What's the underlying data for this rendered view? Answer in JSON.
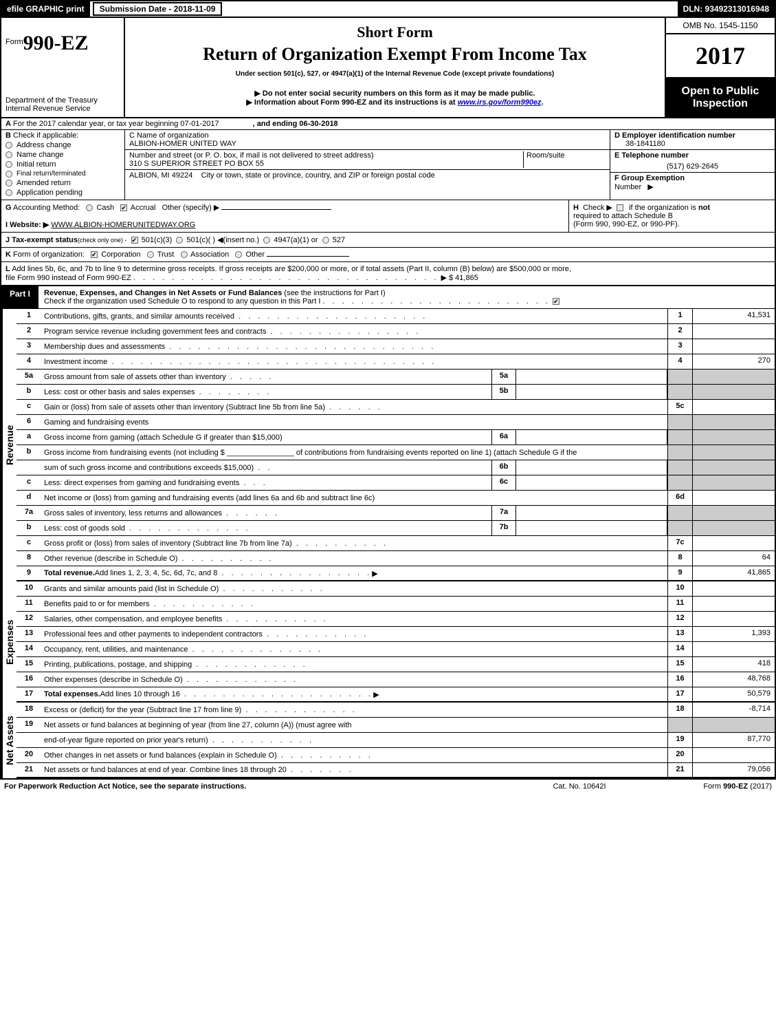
{
  "topbar": {
    "efile": "efile GRAPHIC print",
    "submission": "Submission Date - 2018-11-09",
    "dln": "DLN: 93492313016948"
  },
  "header": {
    "form_prefix": "Form",
    "form_no": "990-EZ",
    "dept1": "Department of the Treasury",
    "dept2": "Internal Revenue Service",
    "title1": "Short Form",
    "title2": "Return of Organization Exempt From Income Tax",
    "sub1": "Under section 501(c), 527, or 4947(a)(1) of the Internal Revenue Code (except private foundations)",
    "sub2": "▶ Do not enter social security numbers on this form as it may be made public.",
    "sub3_pre": "▶ Information about Form 990-EZ and its instructions is at ",
    "sub3_link": "www.irs.gov/form990ez",
    "sub3_post": ".",
    "omb": "OMB No. 1545-1150",
    "year": "2017",
    "open1": "Open to Public",
    "open2": "Inspection"
  },
  "rowA": {
    "lead": "A",
    "txt1": "For the 2017 calendar year, or tax year beginning 07-01-2017",
    "txt2": ", and ending 06-30-2018"
  },
  "B": {
    "lead": "B",
    "title": "Check if applicable:",
    "items": [
      "Address change",
      "Name change",
      "Initial return",
      "Final return/terminated",
      "Amended return",
      "Application pending"
    ]
  },
  "C": {
    "lbl_name": "C Name of organization",
    "name": "ALBION-HOMER UNITED WAY",
    "lbl_addr": "Number and street (or P. O. box, if mail is not delivered to street address)",
    "room_lbl": "Room/suite",
    "addr": "310 S SUPERIOR STREET PO BOX 55",
    "lbl_city": "City or town, state or province, country, and ZIP or foreign postal code",
    "city": "ALBION, MI  49224"
  },
  "D": {
    "lbl": "D Employer identification number",
    "val": "38-1841180"
  },
  "E": {
    "lbl": "E Telephone number",
    "val": "(517) 629-2645"
  },
  "F": {
    "lbl": "F Group Exemption",
    "lbl2": "Number",
    "arrow": "▶"
  },
  "G": {
    "lead": "G",
    "txt": "Accounting Method:",
    "opts": [
      "Cash",
      "Accrual",
      "Other (specify) ▶"
    ]
  },
  "H": {
    "lead": "H",
    "txt1": "Check ▶",
    "txt2": "if the organization is",
    "not": "not",
    "txt3": "required to attach Schedule B",
    "txt4": "(Form 990, 990-EZ, or 990-PF)."
  },
  "I": {
    "lead": "I Website: ▶",
    "url": "WWW.ALBION-HOMERUNITEDWAY.ORG"
  },
  "J": {
    "lead": "J Tax-exempt status",
    "note": "(check only one) -",
    "opts": [
      "501(c)(3)",
      "501(c)(  ) ◀(insert no.)",
      "4947(a)(1) or",
      "527"
    ]
  },
  "K": {
    "lead": "K",
    "txt": "Form of organization:",
    "opts": [
      "Corporation",
      "Trust",
      "Association",
      "Other"
    ]
  },
  "L": {
    "lead": "L",
    "txt1": "Add lines 5b, 6c, and 7b to line 9 to determine gross receipts. If gross receipts are $200,000 or more, or if total assets (Part II, column (B) below) are $500,000 or more,",
    "txt2": "file Form 990 instead of Form 990-EZ",
    "dots": ". . . . . . . . . . . . . . . . . . . . . . . . . . . . . . . .",
    "arrow": "▶",
    "amount": "$ 41,865"
  },
  "part1": {
    "label": "Part I",
    "title": "Revenue, Expenses, and Changes in Net Assets or Fund Balances",
    "see": "(see the instructions for Part I)",
    "check_line": "Check if the organization used Schedule O to respond to any question in this Part I",
    "check_dots": ". . . . . . . . . . . . . . . . . . . . . . . .",
    "sections": {
      "revenue": "Revenue",
      "expenses": "Expenses",
      "netassets": "Net Assets"
    }
  },
  "lines": [
    {
      "n": "1",
      "txt": "Contributions, gifts, grants, and similar amounts received",
      "dots": ". . . . . . . . . . . . . . . . . . . .",
      "rn": "1",
      "rv": "41,531"
    },
    {
      "n": "2",
      "txt": "Program service revenue including government fees and contracts",
      "dots": ". . . . . . . . . . . . . . . .",
      "rn": "2",
      "rv": ""
    },
    {
      "n": "3",
      "txt": "Membership dues and assessments",
      "dots": ". . . . . . . . . . . . . . . . . . . . . . . . . . . .",
      "rn": "3",
      "rv": ""
    },
    {
      "n": "4",
      "txt": "Investment income",
      "dots": ". . . . . . . . . . . . . . . . . . . . . . . . . . . . . . . . . .",
      "rn": "4",
      "rv": "270"
    },
    {
      "n": "5a",
      "txt": "Gross amount from sale of assets other than inventory",
      "dots": ". . . . .",
      "mid": "5a",
      "rv_shade": true
    },
    {
      "n": "b",
      "txt": "Less: cost or other basis and sales expenses",
      "dots": ". . . . . . . .",
      "mid": "5b",
      "rv_shade": true
    },
    {
      "n": "c",
      "txt": "Gain or (loss) from sale of assets other than inventory (Subtract line 5b from line 5a)",
      "dots": ". . . . . .",
      "rn": "5c",
      "rv": ""
    },
    {
      "n": "6",
      "txt": "Gaming and fundraising events",
      "rv_shade": true,
      "no_r": true
    },
    {
      "n": "a",
      "txt": "Gross income from gaming (attach Schedule G if greater than $15,000)",
      "mid": "6a",
      "rv_shade": true
    },
    {
      "n": "b",
      "txt": "Gross income from fundraising events (not including $ ________________ of contributions from fundraising events reported on line 1) (attach Schedule G if the",
      "wrap": true,
      "rv_shade": true,
      "no_r": true
    },
    {
      "n": "",
      "txt": "sum of such gross income and contributions exceeds $15,000)",
      "dots": ". .",
      "mid": "6b",
      "rv_shade": true
    },
    {
      "n": "c",
      "txt": "Less: direct expenses from gaming and fundraising events",
      "dots": ". . .",
      "mid": "6c",
      "rv_shade": true
    },
    {
      "n": "d",
      "txt": "Net income or (loss) from gaming and fundraising events (add lines 6a and 6b and subtract line 6c)",
      "rn": "6d",
      "rv": ""
    },
    {
      "n": "7a",
      "txt": "Gross sales of inventory, less returns and allowances",
      "dots": ". . . . . .",
      "mid": "7a",
      "rv_shade": true
    },
    {
      "n": "b",
      "txt": "Less: cost of goods sold",
      "dots": ". . . . . . . . . . . . .",
      "mid": "7b",
      "rv_shade": true
    },
    {
      "n": "c",
      "txt": "Gross profit or (loss) from sales of inventory (Subtract line 7b from line 7a)",
      "dots": ". . . . . . . . . .",
      "rn": "7c",
      "rv": ""
    },
    {
      "n": "8",
      "txt": "Other revenue (describe in Schedule O)",
      "dots": ". . . . . . . . . .",
      "rn": "8",
      "rv": "64"
    },
    {
      "n": "9",
      "txt_bold": "Total revenue.",
      "txt": " Add lines 1, 2, 3, 4, 5c, 6d, 7c, and 8",
      "dots": ". . . . . . . . . . . . . . . .",
      "arrow": "▶",
      "rn": "9",
      "rv": "41,865",
      "thick": true
    }
  ],
  "exp_lines": [
    {
      "n": "10",
      "txt": "Grants and similar amounts paid (list in Schedule O)",
      "dots": ". . . . . . . . . . .",
      "rn": "10",
      "rv": ""
    },
    {
      "n": "11",
      "txt": "Benefits paid to or for members",
      "dots": ". . . . . . . . . . .",
      "rn": "11",
      "rv": ""
    },
    {
      "n": "12",
      "txt": "Salaries, other compensation, and employee benefits",
      "dots": ". . . . . . . . . . .",
      "rn": "12",
      "rv": ""
    },
    {
      "n": "13",
      "txt": "Professional fees and other payments to independent contractors",
      "dots": ". . . . . . . . . . .",
      "rn": "13",
      "rv": "1,393"
    },
    {
      "n": "14",
      "txt": "Occupancy, rent, utilities, and maintenance",
      "dots": ". . . . . . . . . . . . . .",
      "rn": "14",
      "rv": ""
    },
    {
      "n": "15",
      "txt": "Printing, publications, postage, and shipping",
      "dots": ". . . . . . . . . . . .",
      "rn": "15",
      "rv": "418"
    },
    {
      "n": "16",
      "txt": "Other expenses (describe in Schedule O)",
      "dots": ". . . . . . . . . . . .",
      "rn": "16",
      "rv": "48,768"
    },
    {
      "n": "17",
      "txt_bold": "Total expenses.",
      "txt": " Add lines 10 through 16",
      "dots": ". . . . . . . . . . . . . . . . . . . .",
      "arrow": "▶",
      "rn": "17",
      "rv": "50,579",
      "thick": true
    }
  ],
  "net_lines": [
    {
      "n": "18",
      "txt": "Excess or (deficit) for the year (Subtract line 17 from line 9)",
      "dots": ". . . . . . . . . . . .",
      "rn": "18",
      "rv": "-8,714"
    },
    {
      "n": "19",
      "txt": "Net assets or fund balances at beginning of year (from line 27, column (A)) (must agree with",
      "rv_shade": true,
      "no_r": true
    },
    {
      "n": "",
      "txt": "end-of-year figure reported on prior year's return)",
      "dots": ". . . . . . . . . . .",
      "rn": "19",
      "rv": "87,770"
    },
    {
      "n": "20",
      "txt": "Other changes in net assets or fund balances (explain in Schedule O)",
      "dots": ". . . . . . . . . .",
      "rn": "20",
      "rv": ""
    },
    {
      "n": "21",
      "txt": "Net assets or fund balances at end of year. Combine lines 18 through 20",
      "dots": ". . . . . . .",
      "rn": "21",
      "rv": "79,056",
      "thick": true
    }
  ],
  "footer": {
    "l": "For Paperwork Reduction Act Notice, see the separate instructions.",
    "m": "Cat. No. 10642I",
    "r_pre": "Form ",
    "r_bold": "990-EZ",
    "r_post": " (2017)"
  },
  "colors": {
    "black": "#000000",
    "white": "#ffffff",
    "shade": "#cccccc",
    "link": "#0000cc",
    "radio_bg": "#e8e8e8"
  }
}
